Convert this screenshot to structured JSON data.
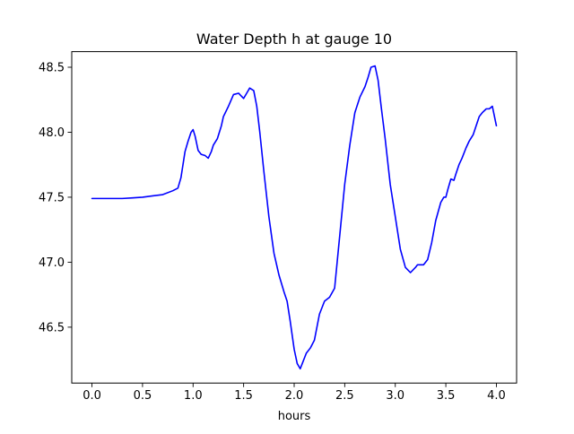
{
  "chart_data": {
    "type": "line",
    "title": "Water Depth h at gauge 10",
    "xlabel": "hours",
    "ylabel": "",
    "xlim": [
      -0.2,
      4.2
    ],
    "ylim": [
      46.07,
      48.62
    ],
    "xticks": [
      0.0,
      0.5,
      1.0,
      1.5,
      2.0,
      2.5,
      3.0,
      3.5,
      4.0
    ],
    "xtick_labels": [
      "0.0",
      "0.5",
      "1.0",
      "1.5",
      "2.0",
      "2.5",
      "3.0",
      "3.5",
      "4.0"
    ],
    "yticks": [
      46.5,
      47.0,
      47.5,
      48.0,
      48.5
    ],
    "ytick_labels": [
      "46.5",
      "47.0",
      "47.5",
      "48.0",
      "48.5"
    ],
    "grid": false,
    "series": [
      {
        "color": "#0000ff",
        "x": [
          0.0,
          0.1,
          0.2,
          0.3,
          0.4,
          0.5,
          0.6,
          0.7,
          0.8,
          0.85,
          0.88,
          0.92,
          0.95,
          0.98,
          1.0,
          1.02,
          1.05,
          1.08,
          1.12,
          1.15,
          1.18,
          1.2,
          1.24,
          1.28,
          1.3,
          1.35,
          1.4,
          1.45,
          1.5,
          1.53,
          1.56,
          1.6,
          1.63,
          1.66,
          1.7,
          1.75,
          1.8,
          1.85,
          1.9,
          1.93,
          1.96,
          2.0,
          2.03,
          2.06,
          2.08,
          2.12,
          2.16,
          2.2,
          2.25,
          2.3,
          2.35,
          2.4,
          2.45,
          2.5,
          2.55,
          2.6,
          2.65,
          2.7,
          2.73,
          2.76,
          2.8,
          2.83,
          2.86,
          2.9,
          2.95,
          3.0,
          3.05,
          3.1,
          3.15,
          3.2,
          3.22,
          3.25,
          3.28,
          3.32,
          3.36,
          3.4,
          3.45,
          3.48,
          3.5,
          3.52,
          3.55,
          3.58,
          3.6,
          3.63,
          3.66,
          3.7,
          3.73,
          3.77,
          3.8,
          3.83,
          3.86,
          3.9,
          3.93,
          3.96,
          4.0
        ],
        "y": [
          47.49,
          47.49,
          47.49,
          47.49,
          47.495,
          47.5,
          47.51,
          47.52,
          47.55,
          47.57,
          47.65,
          47.85,
          47.93,
          48.0,
          48.02,
          47.97,
          47.86,
          47.83,
          47.82,
          47.8,
          47.85,
          47.9,
          47.95,
          48.05,
          48.12,
          48.2,
          48.29,
          48.3,
          48.26,
          48.3,
          48.34,
          48.32,
          48.2,
          48.0,
          47.7,
          47.35,
          47.07,
          46.9,
          46.77,
          46.7,
          46.55,
          46.33,
          46.22,
          46.18,
          46.22,
          46.3,
          46.34,
          46.4,
          46.6,
          46.7,
          46.73,
          46.8,
          47.2,
          47.6,
          47.9,
          48.15,
          48.27,
          48.35,
          48.42,
          48.5,
          48.51,
          48.4,
          48.2,
          47.95,
          47.6,
          47.35,
          47.1,
          46.96,
          46.92,
          46.96,
          46.98,
          46.98,
          46.98,
          47.02,
          47.15,
          47.32,
          47.46,
          47.5,
          47.5,
          47.56,
          47.64,
          47.63,
          47.68,
          47.75,
          47.8,
          47.88,
          47.93,
          47.98,
          48.05,
          48.12,
          48.15,
          48.18,
          48.18,
          48.2,
          48.05
        ]
      }
    ]
  }
}
